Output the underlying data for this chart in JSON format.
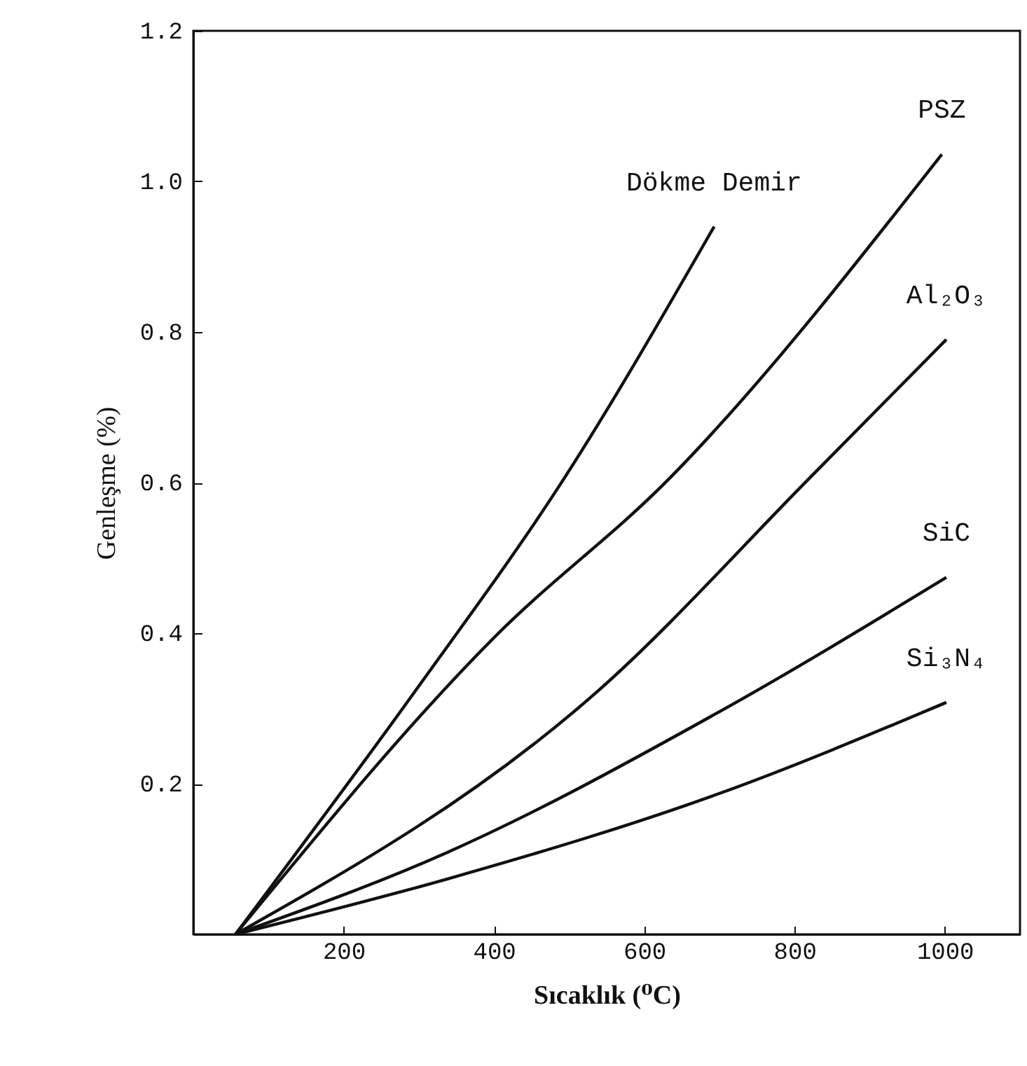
{
  "chart_data": {
    "type": "line",
    "xlabel": "Sıcaklık (⁰C)",
    "ylabel": "Genleşme (%)",
    "xlim": [
      0,
      1100
    ],
    "xticks": [
      200,
      400,
      600,
      800,
      1000
    ],
    "ylim": [
      0,
      1.2
    ],
    "yticks": [
      0.2,
      0.4,
      0.6,
      0.8,
      {
        "value": 1,
        "label": "1.0"
      },
      {
        "value": 1.2,
        "label": "1.2"
      }
    ],
    "grid": false,
    "legend": false,
    "marker": "none",
    "line_style": "solid",
    "series": [
      {
        "name": "Dökme Demir",
        "color": "#111111",
        "x": [
          56,
          293,
          495,
          693
        ],
        "values": [
          0,
          0.32,
          0.608,
          0.94
        ]
      },
      {
        "name": "PSZ",
        "color": "#111111",
        "x": [
          56,
          400,
          636,
          996
        ],
        "values": [
          0,
          0.394,
          0.608,
          1.036
        ]
      },
      {
        "name": "Al₂O₃",
        "color": "#111111",
        "x": [
          56,
          537,
          822,
          1002
        ],
        "values": [
          0,
          0.322,
          0.608,
          0.79
        ]
      },
      {
        "name": "SiC",
        "color": "#111111",
        "x": [
          56,
          336,
          697,
          1002
        ],
        "values": [
          0,
          0.108,
          0.294,
          0.474
        ]
      },
      {
        "name": "Si₃N₄",
        "color": "#111111",
        "x": [
          56,
          336,
          697,
          1002
        ],
        "values": [
          0,
          0.073,
          0.186,
          0.308
        ]
      }
    ]
  }
}
